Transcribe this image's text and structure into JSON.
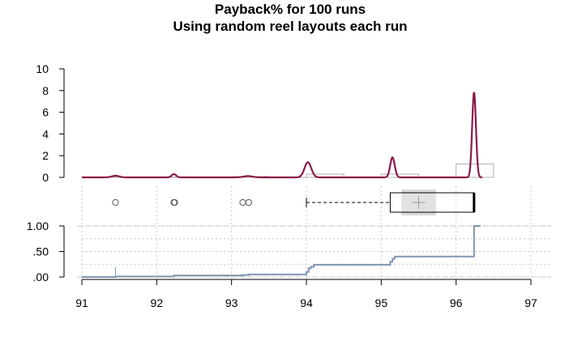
{
  "chart_data": {
    "type": "composite",
    "title_line1": "Payback% for 100 runs",
    "title_line2": "Using random reel layouts each run",
    "x": {
      "range": [
        91,
        97
      ],
      "ticks": [
        91,
        92,
        93,
        94,
        95,
        96,
        97
      ],
      "tick_labels": [
        "91",
        "92",
        "93",
        "94",
        "95",
        "96",
        "97"
      ]
    },
    "histogram": {
      "y_range": [
        0,
        10
      ],
      "y_ticks": [
        0,
        2,
        4,
        6,
        8,
        10
      ],
      "y_tick_labels": [
        "0",
        "2",
        "4",
        "6",
        "8",
        "10"
      ],
      "bins": [
        {
          "x0": 91.0,
          "x1": 91.5,
          "height": 0.04
        },
        {
          "x0": 91.5,
          "x1": 92.0,
          "height": 0.0
        },
        {
          "x0": 92.0,
          "x1": 92.5,
          "height": 0.04
        },
        {
          "x0": 92.5,
          "x1": 93.0,
          "height": 0.0
        },
        {
          "x0": 93.0,
          "x1": 93.5,
          "height": 0.08
        },
        {
          "x0": 93.5,
          "x1": 94.0,
          "height": 0.0
        },
        {
          "x0": 94.0,
          "x1": 94.5,
          "height": 0.3
        },
        {
          "x0": 94.5,
          "x1": 95.0,
          "height": 0.0
        },
        {
          "x0": 95.0,
          "x1": 95.5,
          "height": 0.3
        },
        {
          "x0": 95.5,
          "x1": 96.0,
          "height": 0.0
        },
        {
          "x0": 96.0,
          "x1": 96.5,
          "height": 1.24
        }
      ],
      "density_peaks": [
        {
          "x": 91.45,
          "height": 0.15,
          "width": 0.05
        },
        {
          "x": 92.23,
          "height": 0.3,
          "width": 0.03
        },
        {
          "x": 93.22,
          "height": 0.12,
          "width": 0.06
        },
        {
          "x": 94.02,
          "height": 1.4,
          "width": 0.045
        },
        {
          "x": 95.15,
          "height": 1.85,
          "width": 0.03
        },
        {
          "x": 96.24,
          "height": 7.9,
          "width": 0.025
        }
      ]
    },
    "boxplot": {
      "whisker_low": 94.0,
      "q1": 95.12,
      "median": 96.24,
      "q3": 96.24,
      "whisker_high": 96.24,
      "mean": 95.5,
      "mean_ci": [
        95.27,
        95.73
      ],
      "outliers": [
        91.45,
        92.23,
        92.24,
        93.15,
        93.23
      ]
    },
    "ecdf": {
      "y_range": [
        0,
        1
      ],
      "y_ticks": [
        0,
        0.25,
        0.5,
        0.75,
        1.0
      ],
      "y_tick_labels": [
        ".00",
        ".50",
        "1.00"
      ],
      "y_label_values": [
        0,
        0.5,
        1.0
      ],
      "steps": [
        {
          "x": 91.45,
          "y": 0.01
        },
        {
          "x": 92.23,
          "y": 0.03
        },
        {
          "x": 93.15,
          "y": 0.04
        },
        {
          "x": 93.23,
          "y": 0.05
        },
        {
          "x": 94.0,
          "y": 0.1
        },
        {
          "x": 94.03,
          "y": 0.17
        },
        {
          "x": 94.06,
          "y": 0.2
        },
        {
          "x": 94.1,
          "y": 0.24
        },
        {
          "x": 95.12,
          "y": 0.3
        },
        {
          "x": 95.15,
          "y": 0.36
        },
        {
          "x": 95.18,
          "y": 0.4
        },
        {
          "x": 96.24,
          "y": 1.0
        }
      ]
    },
    "colors": {
      "density": "#8B1A4A",
      "ecdf": "#7F96B2",
      "bars": "#B0B0B0",
      "ci_band": "#D9D9D9",
      "grid": "#C8C8C8"
    }
  }
}
